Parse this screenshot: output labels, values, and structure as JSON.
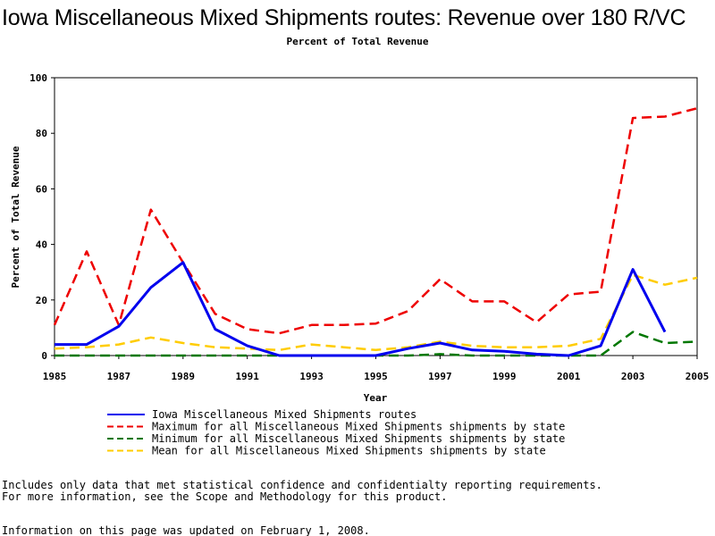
{
  "chart_data": {
    "type": "line",
    "title": "Iowa Miscellaneous Mixed Shipments routes: Revenue over 180 R/VC",
    "subtitle": "Percent of Total Revenue",
    "xlabel": "Year",
    "ylabel": "Percent of Total Revenue",
    "xlim": [
      1985,
      2005
    ],
    "ylim": [
      0,
      100
    ],
    "x_ticks": [
      "1985",
      "1987",
      "1989",
      "1991",
      "1993",
      "1995",
      "1997",
      "1999",
      "2001",
      "2003",
      "2005"
    ],
    "y_ticks": [
      "0",
      "20",
      "40",
      "60",
      "80",
      "100"
    ],
    "grid": false,
    "legend_position": "bottom",
    "series": [
      {
        "name": "Iowa Miscellaneous Mixed Shipments routes",
        "color": "#0000ee",
        "style": "solid",
        "x": [
          1985,
          1986,
          1987,
          1988,
          1989,
          1990,
          1991,
          1992,
          1993,
          1994,
          1995,
          1996,
          1997,
          1998,
          1999,
          2000,
          2001,
          2002,
          2003,
          2004
        ],
        "values": [
          4,
          4,
          10.5,
          24.5,
          33.5,
          9.5,
          3.5,
          0,
          0,
          0,
          0,
          2.5,
          4.5,
          2,
          1.5,
          0.5,
          0,
          3.5,
          31,
          8.5
        ]
      },
      {
        "name": "Maximum for all Miscellaneous Mixed Shipments shipments by state",
        "color": "#ee0000",
        "style": "dashed",
        "x": [
          1985,
          1986,
          1987,
          1988,
          1989,
          1990,
          1991,
          1992,
          1993,
          1994,
          1995,
          1996,
          1997,
          1998,
          1999,
          2000,
          2001,
          2002,
          2003,
          2004,
          2005
        ],
        "values": [
          11,
          37.5,
          11,
          52.5,
          33.5,
          15,
          9.5,
          8,
          11,
          11,
          11.5,
          16,
          27.5,
          19.5,
          19.5,
          12,
          22,
          23,
          85.5,
          86,
          89
        ]
      },
      {
        "name": "Minimum for all Miscellaneous Mixed Shipments shipments by state",
        "color": "#007700",
        "style": "dashed",
        "x": [
          1985,
          1986,
          1987,
          1988,
          1989,
          1990,
          1991,
          1992,
          1993,
          1994,
          1995,
          1996,
          1997,
          1998,
          1999,
          2000,
          2001,
          2002,
          2003,
          2004,
          2005
        ],
        "values": [
          0,
          0,
          0,
          0,
          0,
          0,
          0,
          0,
          0,
          0,
          0,
          0,
          0.5,
          0,
          0,
          0,
          0,
          0,
          8.5,
          4.5,
          5
        ]
      },
      {
        "name": "Mean for all Miscellaneous Mixed Shipments shipments by state",
        "color": "#ffcc00",
        "style": "dashed",
        "x": [
          1985,
          1986,
          1987,
          1988,
          1989,
          1990,
          1991,
          1992,
          1993,
          1994,
          1995,
          1996,
          1997,
          1998,
          1999,
          2000,
          2001,
          2002,
          2003,
          2004,
          2005
        ],
        "values": [
          2.5,
          3,
          4,
          6.5,
          4.5,
          3,
          2.5,
          2,
          4,
          3,
          2,
          3,
          5,
          3.5,
          3,
          3,
          3.5,
          6,
          29,
          25.5,
          28
        ]
      }
    ]
  },
  "footer": {
    "line1": "Includes only data that met statistical confidence and confidentialty reporting requirements.",
    "line2": "For more information, see the Scope and Methodology for this product.",
    "updated": "Information on this page was updated on February 1, 2008."
  }
}
